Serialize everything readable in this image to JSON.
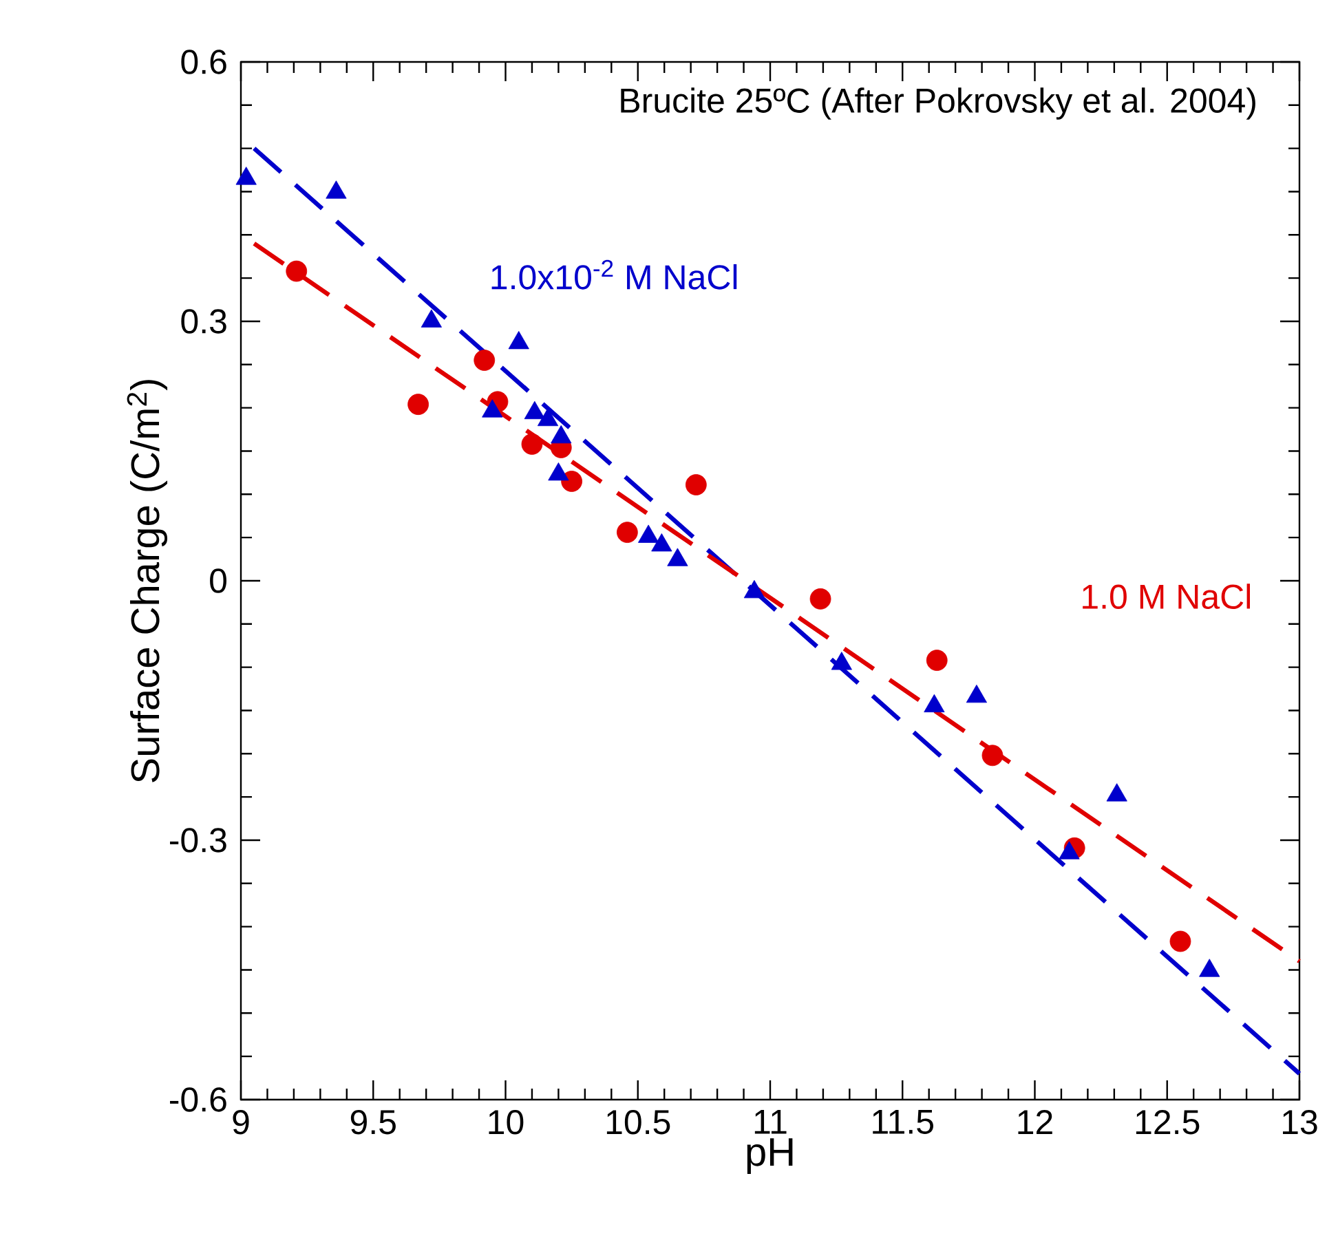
{
  "chart_data": {
    "type": "scatter",
    "title": "Brucite 25ºC (After Pokrovsky et al. 2004)",
    "xlabel": "pH",
    "ylabel": "Surface Charge (C/m$^{2}$)",
    "xlim": [
      9,
      13
    ],
    "xticks": [
      9,
      9.5,
      10,
      10.5,
      11,
      11.5,
      12,
      12.5,
      13
    ],
    "ylim": [
      -0.6,
      0.6
    ],
    "yticks": [
      -0.6,
      -0.3,
      0,
      0.3,
      0.6
    ],
    "series": [
      {
        "name": "1.0 M NaCl",
        "marker": "circle",
        "color": "#e00000",
        "x": [
          9.21,
          9.67,
          9.92,
          9.97,
          10.1,
          10.21,
          10.25,
          10.46,
          10.72,
          11.19,
          11.63,
          11.84,
          12.15,
          12.55
        ],
        "values": [
          0.358,
          0.204,
          0.255,
          0.207,
          0.158,
          0.154,
          0.115,
          0.056,
          0.111,
          -0.021,
          -0.092,
          -0.202,
          -0.309,
          -0.417
        ]
      },
      {
        "name": "1.0x10$^{-2}$ M NaCl",
        "marker": "triangle",
        "color": "#0000cc",
        "x": [
          9.02,
          9.36,
          9.72,
          9.95,
          10.05,
          10.11,
          10.16,
          10.21,
          10.2,
          10.54,
          10.59,
          10.65,
          10.94,
          11.27,
          11.62,
          11.78,
          12.13,
          12.31,
          12.66
        ],
        "values": [
          0.465,
          0.449,
          0.3,
          0.196,
          0.275,
          0.194,
          0.186,
          0.166,
          0.123,
          0.051,
          0.041,
          0.024,
          -0.013,
          -0.096,
          -0.145,
          -0.134,
          -0.315,
          -0.248,
          -0.451
        ]
      },
      {
        "type": "line",
        "line_style": "dashed",
        "marker": "none",
        "color": "#0000cc",
        "x": [
          9.05,
          13
        ],
        "values": [
          0.5,
          -0.57
        ]
      },
      {
        "type": "line",
        "line_style": "dashed",
        "marker": "none",
        "color": "#e00000",
        "x": [
          9.05,
          13
        ],
        "values": [
          0.39,
          -0.44
        ]
      }
    ]
  }
}
